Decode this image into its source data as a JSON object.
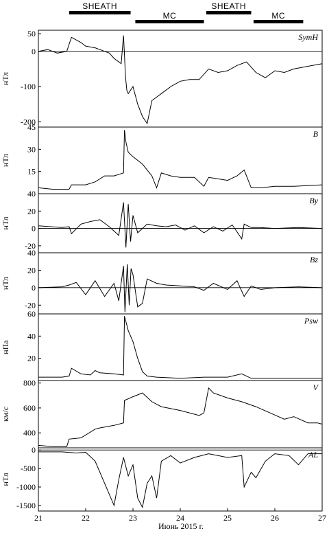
{
  "chart_data": {
    "type": "line",
    "xlabel": "Июнь 2015 г.",
    "x_ticks": [
      21,
      22,
      23,
      24,
      25,
      26,
      27
    ],
    "xlim": [
      21,
      27
    ],
    "intervals": [
      {
        "label": "SHEATH",
        "start": 21.65,
        "end": 22.95
      },
      {
        "label": "MC",
        "start": 23.05,
        "end": 24.5
      },
      {
        "label": "SHEATH",
        "start": 24.55,
        "end": 25.5
      },
      {
        "label": "MC",
        "start": 25.55,
        "end": 26.6
      }
    ],
    "panels": [
      {
        "id": "symh",
        "label": "SymH",
        "ylabel": "нТл",
        "ylim": [
          -215,
          60
        ],
        "yticks": [
          50,
          0,
          -100,
          -200
        ],
        "zero_line": true,
        "x": [
          21.0,
          21.2,
          21.4,
          21.6,
          21.65,
          21.7,
          21.9,
          22.0,
          22.2,
          22.3,
          22.5,
          22.6,
          22.75,
          22.8,
          22.82,
          22.84,
          22.87,
          22.9,
          23.0,
          23.1,
          23.2,
          23.3,
          23.4,
          23.6,
          23.8,
          24.0,
          24.2,
          24.4,
          24.6,
          24.8,
          25.0,
          25.2,
          25.4,
          25.6,
          25.8,
          26.0,
          26.2,
          26.4,
          26.6,
          26.8,
          27.0
        ],
        "y": [
          0,
          5,
          -5,
          0,
          20,
          40,
          25,
          15,
          10,
          5,
          -5,
          -20,
          -35,
          45,
          -10,
          -70,
          -110,
          -120,
          -100,
          -150,
          -185,
          -205,
          -140,
          -120,
          -100,
          -85,
          -80,
          -80,
          -50,
          -60,
          -55,
          -40,
          -30,
          -60,
          -75,
          -55,
          -60,
          -50,
          -45,
          -40,
          -35
        ]
      },
      {
        "id": "b",
        "label": "B",
        "ylabel": "нТл",
        "ylim": [
          0,
          45
        ],
        "yticks": [
          45,
          30,
          15
        ],
        "zero_line": false,
        "x": [
          21.0,
          21.3,
          21.5,
          21.65,
          21.7,
          22.0,
          22.2,
          22.4,
          22.6,
          22.8,
          22.82,
          22.85,
          22.9,
          23.0,
          23.2,
          23.4,
          23.5,
          23.6,
          23.8,
          24.0,
          24.3,
          24.5,
          24.6,
          24.8,
          25.0,
          25.2,
          25.35,
          25.5,
          25.7,
          26.0,
          26.4,
          27.0
        ],
        "y": [
          4,
          3,
          3,
          3,
          6,
          6,
          8,
          12,
          12,
          14,
          43,
          35,
          28,
          25,
          20,
          12,
          4,
          14,
          12,
          11,
          11,
          5,
          11,
          10,
          9,
          12,
          16,
          4,
          4,
          5,
          5,
          6
        ]
      },
      {
        "id": "by",
        "label": "By",
        "ylabel": "нТл",
        "ylim": [
          -28,
          40
        ],
        "yticks": [
          40,
          20,
          0,
          -20
        ],
        "zero_line": true,
        "x": [
          21.0,
          21.5,
          21.65,
          21.7,
          21.9,
          22.1,
          22.3,
          22.5,
          22.7,
          22.8,
          22.85,
          22.9,
          22.95,
          23.0,
          23.1,
          23.3,
          23.5,
          23.7,
          23.9,
          24.1,
          24.3,
          24.5,
          24.7,
          24.9,
          25.1,
          25.3,
          25.35,
          25.5,
          25.7,
          26.0,
          26.5,
          27.0
        ],
        "y": [
          3,
          1,
          2,
          -6,
          5,
          8,
          10,
          2,
          -8,
          30,
          -22,
          28,
          -15,
          15,
          -5,
          5,
          3,
          2,
          4,
          -2,
          3,
          -5,
          2,
          -3,
          4,
          -12,
          5,
          1,
          1,
          0,
          1,
          0
        ]
      },
      {
        "id": "bz",
        "label": "Bz",
        "ylabel": "нТл",
        "ylim": [
          -30,
          40
        ],
        "yticks": [
          40,
          20,
          0,
          -20
        ],
        "zero_line": true,
        "x": [
          21.0,
          21.5,
          21.65,
          21.8,
          22.0,
          22.2,
          22.4,
          22.6,
          22.7,
          22.8,
          22.83,
          22.88,
          22.92,
          22.96,
          23.0,
          23.1,
          23.2,
          23.3,
          23.5,
          23.7,
          24.0,
          24.3,
          24.5,
          24.7,
          25.0,
          25.2,
          25.35,
          25.5,
          25.7,
          26.0,
          26.5,
          27.0
        ],
        "y": [
          0,
          1,
          3,
          6,
          -8,
          8,
          -10,
          5,
          -15,
          25,
          -28,
          27,
          -20,
          22,
          15,
          -22,
          -18,
          10,
          5,
          3,
          2,
          1,
          -3,
          5,
          -2,
          8,
          -10,
          2,
          -2,
          0,
          1,
          0
        ]
      },
      {
        "id": "psw",
        "label": "Psw",
        "ylabel": "нПа",
        "ylim": [
          0,
          60
        ],
        "yticks": [
          60,
          40,
          20
        ],
        "zero_line": false,
        "x": [
          21.0,
          21.5,
          21.65,
          21.7,
          21.9,
          22.1,
          22.2,
          22.3,
          22.6,
          22.8,
          22.82,
          22.9,
          23.0,
          23.1,
          23.2,
          23.3,
          23.5,
          24.0,
          24.5,
          25.0,
          25.3,
          25.5,
          26.0,
          27.0
        ],
        "y": [
          3,
          3,
          4,
          11,
          6,
          5,
          9,
          7,
          6,
          5,
          58,
          45,
          35,
          20,
          8,
          4,
          3,
          2,
          3,
          3,
          6,
          2,
          2,
          2
        ]
      },
      {
        "id": "v",
        "label": "V",
        "ylabel": "км/с",
        "ylim": [
          280,
          820
        ],
        "yticks": [
          800,
          600,
          400
        ],
        "zero_line": false,
        "x": [
          21.0,
          21.3,
          21.6,
          21.65,
          21.9,
          22.2,
          22.3,
          22.6,
          22.8,
          22.82,
          23.0,
          23.2,
          23.4,
          23.6,
          24.0,
          24.4,
          24.5,
          24.6,
          24.7,
          25.0,
          25.3,
          25.6,
          25.9,
          26.2,
          26.4,
          26.7,
          26.9,
          27.0
        ],
        "y": [
          300,
          290,
          290,
          350,
          360,
          430,
          440,
          460,
          480,
          660,
          690,
          720,
          650,
          610,
          580,
          540,
          560,
          760,
          720,
          680,
          650,
          610,
          560,
          510,
          530,
          480,
          480,
          470
        ]
      },
      {
        "id": "al",
        "label": "AL",
        "ylabel": "нТл",
        "ylim": [
          -1650,
          60
        ],
        "yticks": [
          0,
          -500,
          -1000,
          -1500
        ],
        "zero_line": true,
        "x": [
          21.0,
          21.5,
          21.8,
          22.0,
          22.2,
          22.4,
          22.6,
          22.7,
          22.8,
          22.9,
          23.0,
          23.1,
          23.2,
          23.3,
          23.4,
          23.5,
          23.6,
          23.8,
          24.0,
          24.3,
          24.6,
          25.0,
          25.3,
          25.35,
          25.5,
          25.6,
          25.8,
          26.0,
          26.3,
          26.5,
          26.7,
          27.0
        ],
        "y": [
          -50,
          -50,
          -80,
          -60,
          -300,
          -900,
          -1500,
          -800,
          -200,
          -700,
          -400,
          -1300,
          -1550,
          -900,
          -700,
          -1300,
          -300,
          -150,
          -350,
          -200,
          -100,
          -200,
          -150,
          -1000,
          -600,
          -750,
          -300,
          -100,
          -150,
          -400,
          -100,
          -100
        ]
      }
    ]
  }
}
